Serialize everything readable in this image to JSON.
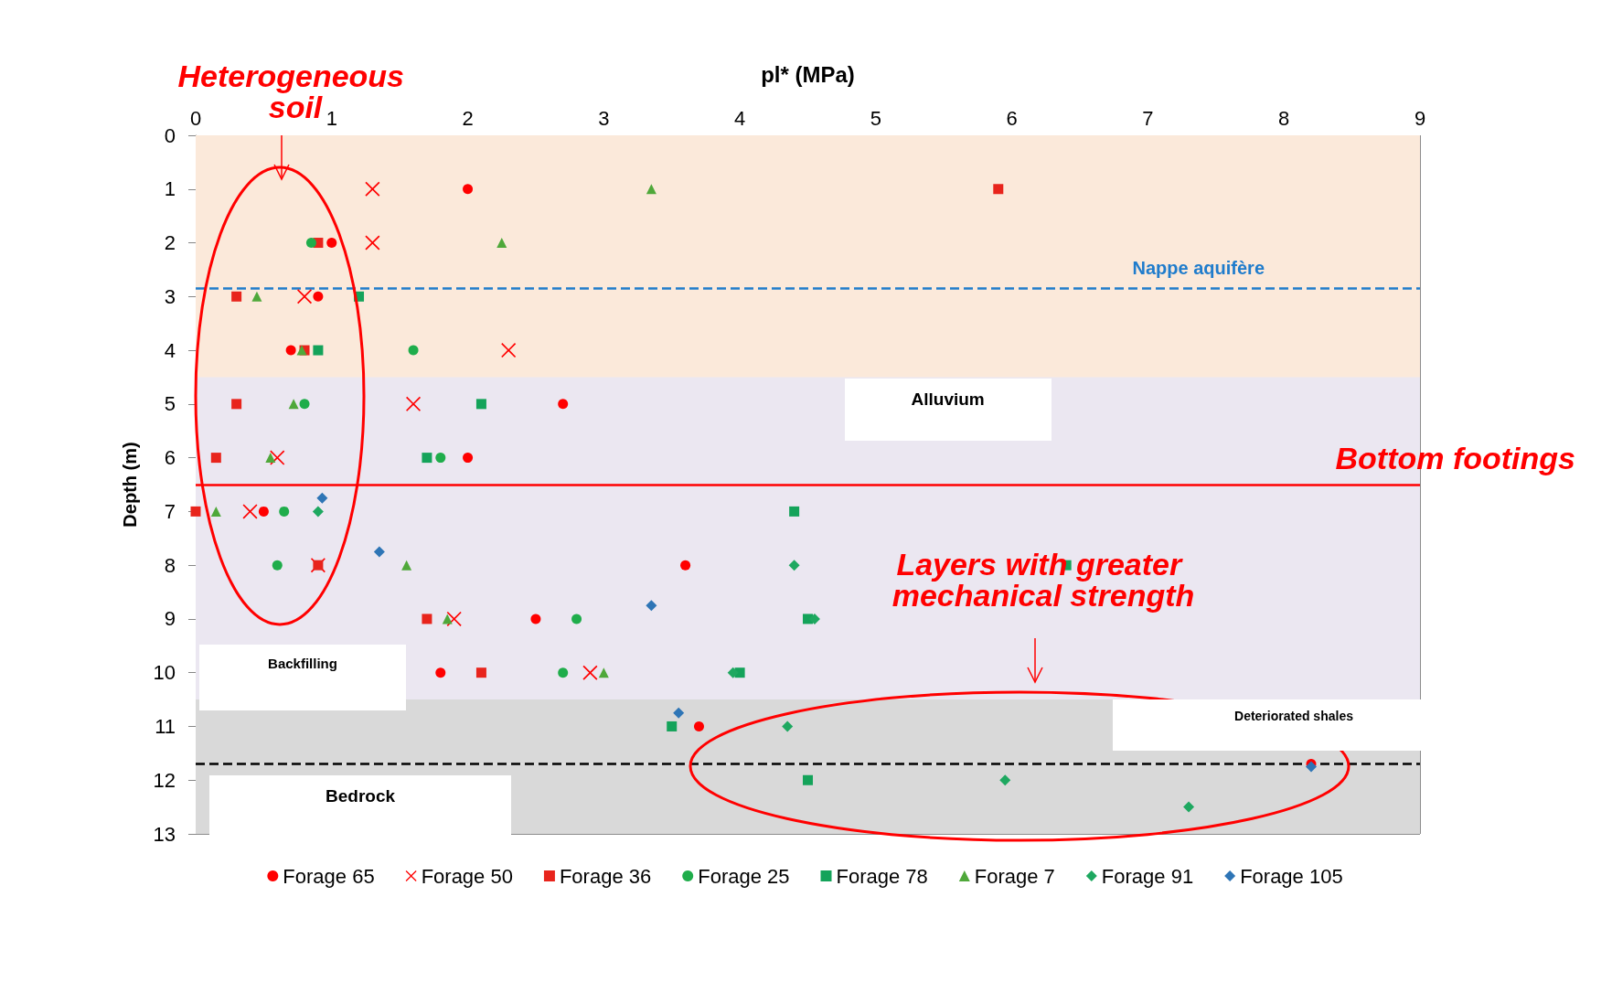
{
  "chart_data": {
    "type": "scatter",
    "xlabel": "pl* (MPa)",
    "ylabel": "Depth (m)",
    "xlim": [
      0,
      9
    ],
    "xticks": [
      0,
      1,
      2,
      3,
      4,
      5,
      6,
      7,
      8,
      9
    ],
    "ylim": [
      13,
      0
    ],
    "yticks": [
      0,
      1,
      2,
      3,
      4,
      5,
      6,
      7,
      8,
      9,
      10,
      11,
      12,
      13
    ],
    "grid": true,
    "legend": "bottom",
    "series": [
      {
        "name": "Forage 65",
        "color": "#ff0000",
        "marker": "circle",
        "x": [
          2.0,
          1.0,
          0.9,
          0.7,
          2.7,
          2.0,
          0.5,
          3.6,
          2.5,
          1.8,
          3.7,
          8.2
        ],
        "values": [
          1,
          2,
          3,
          4,
          5,
          6,
          7,
          8,
          9,
          10,
          11,
          11.7
        ]
      },
      {
        "name": "Forage 50",
        "color": "#ff0000",
        "marker": "cross",
        "x": [
          1.3,
          1.3,
          0.8,
          2.3,
          1.6,
          0.6,
          0.4,
          0.9,
          1.9,
          2.9
        ],
        "values": [
          1,
          2,
          3,
          4,
          5,
          6,
          7,
          8,
          9,
          10
        ]
      },
      {
        "name": "Forage 36",
        "color": "#e8241c",
        "marker": "square",
        "x": [
          5.9,
          0.9,
          0.3,
          0.8,
          0.3,
          0.15,
          0.0,
          0.9,
          1.7,
          2.1
        ],
        "values": [
          1,
          2,
          3,
          4,
          5,
          6,
          7,
          8,
          9,
          10
        ]
      },
      {
        "name": "Forage 25",
        "color": "#1fad4b",
        "marker": "circle",
        "x": [
          0.85,
          1.6,
          0.8,
          1.8,
          0.65,
          0.6,
          2.8,
          2.7
        ],
        "values": [
          2,
          4,
          5,
          6,
          7,
          8,
          9,
          10
        ]
      },
      {
        "name": "Forage 78",
        "color": "#14a35a",
        "marker": "square",
        "x": [
          1.2,
          0.9,
          2.1,
          1.7,
          4.4,
          6.4,
          4.5,
          4.0,
          3.5,
          4.5
        ],
        "values": [
          3,
          4,
          5,
          6,
          7,
          8,
          9,
          10,
          11,
          12
        ]
      },
      {
        "name": "Forage 7",
        "color": "#4fa83a",
        "marker": "triangle",
        "x": [
          3.35,
          2.25,
          0.45,
          0.78,
          0.72,
          0.55,
          0.15,
          1.55,
          1.85,
          3.0
        ],
        "values": [
          1,
          2,
          3,
          4,
          5,
          6,
          7,
          8,
          9,
          10
        ]
      },
      {
        "name": "Forage 91",
        "color": "#1ea860",
        "marker": "diamond",
        "x": [
          0.9,
          4.4,
          4.55,
          3.95,
          4.35,
          5.95,
          7.3
        ],
        "values": [
          7,
          8,
          9,
          10,
          11,
          12,
          12.5
        ]
      },
      {
        "name": "Forage 105",
        "color": "#2e75b6",
        "marker": "diamond",
        "x": [
          0.93,
          1.35,
          3.35,
          3.55,
          8.2
        ],
        "values": [
          6.75,
          7.75,
          8.75,
          10.75,
          11.75
        ]
      }
    ],
    "bands": [
      {
        "axis": "y",
        "from": 0,
        "to": 10.5,
        "label": "Backfilling",
        "color": "#fbe9da"
      },
      {
        "axis": "y",
        "from": 4.5,
        "to": 10.5,
        "label": "Alluvium",
        "color": "#ebe7f1"
      },
      {
        "axis": "y",
        "from": 10.5,
        "to": 11.7,
        "label": "Deteriorated shales",
        "color": "#d9d9d9"
      },
      {
        "axis": "y",
        "from": 11.7,
        "to": 13,
        "label": "Bedrock",
        "color": "#d9d9d9"
      }
    ],
    "ref_lines": [
      {
        "axis": "y",
        "value": 2.85,
        "label": "Nappe aquifère",
        "color": "#1f7ccc",
        "line_style": "dashed"
      },
      {
        "axis": "y",
        "value": 6.5,
        "label": "Bottom footings",
        "color": "#ff0000",
        "line_style": "solid"
      },
      {
        "axis": "y",
        "value": 11.7,
        "label": null,
        "color": "#000000",
        "line_style": "dashed"
      }
    ],
    "annotations": [
      "Heterogeneous soil",
      "Layers with greater mechanical strength"
    ]
  }
}
